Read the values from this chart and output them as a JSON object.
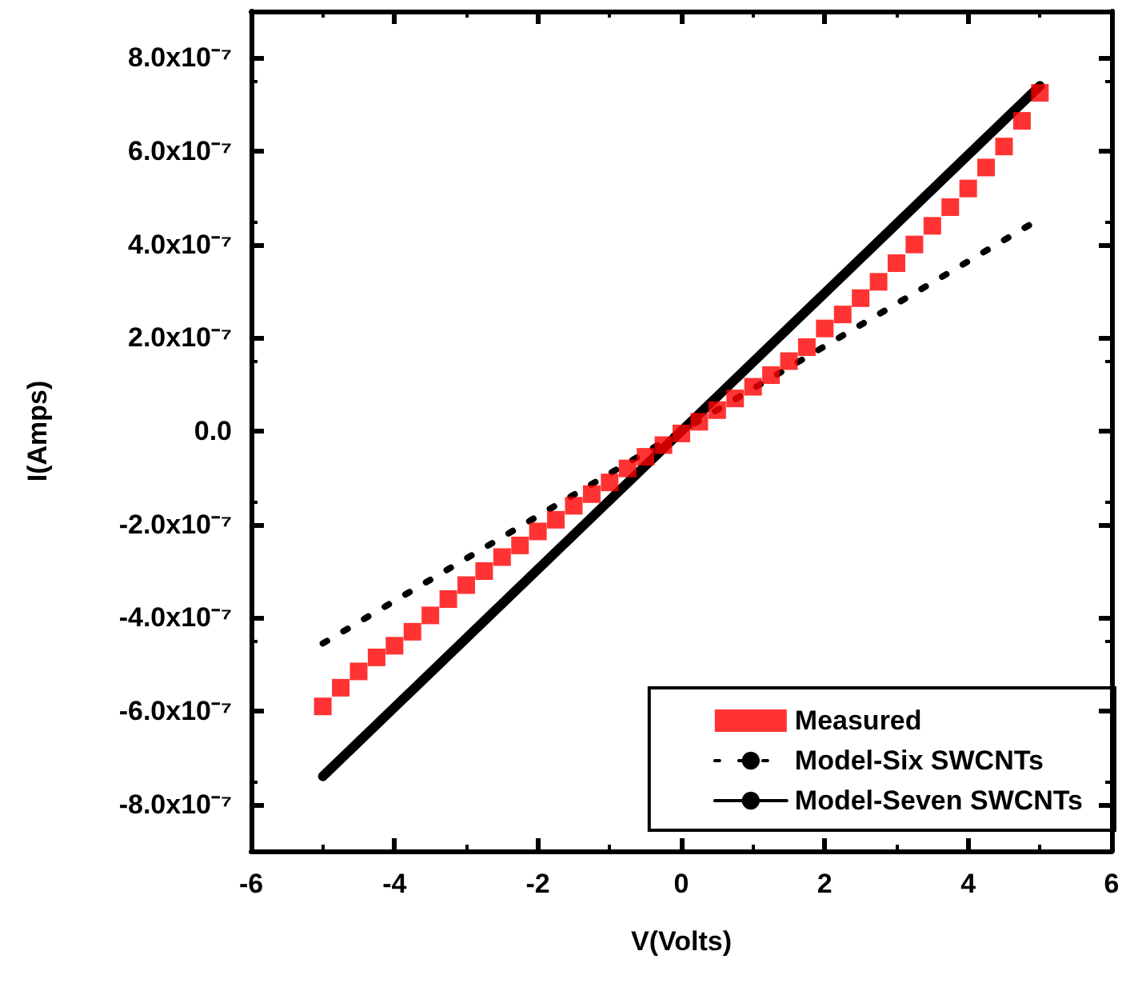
{
  "chart_data": {
    "type": "scatter",
    "xlabel": "V(Volts)",
    "ylabel": "I(Amps)",
    "xlim": [
      -6,
      6
    ],
    "xticks": [
      -6,
      -4,
      -2,
      0,
      2,
      4,
      6
    ],
    "ylim": [
      -9e-07,
      9e-07
    ],
    "yticks": [
      {
        "value": -8e-07,
        "label": "-8.0x10⁻⁷"
      },
      {
        "value": -6e-07,
        "label": "-6.0x10⁻⁷"
      },
      {
        "value": -4e-07,
        "label": "-4.0x10⁻⁷"
      },
      {
        "value": -2e-07,
        "label": "-2.0x10⁻⁷"
      },
      {
        "value": 0,
        "label": "0.0"
      },
      {
        "value": 2e-07,
        "label": "2.0x10⁻⁷"
      },
      {
        "value": 4e-07,
        "label": "4.0x10⁻⁷"
      },
      {
        "value": 6e-07,
        "label": "6.0x10⁻⁷"
      },
      {
        "value": 8e-07,
        "label": "8.0x10⁻⁷"
      }
    ],
    "grid": false,
    "legend": "bottom right",
    "series": [
      {
        "name": "Measured",
        "marker": "square",
        "color": "#ff0000",
        "x": [
          -5,
          -4.75,
          -4.5,
          -4.25,
          -4,
          -3.75,
          -3.5,
          -3.25,
          -3,
          -2.75,
          -2.5,
          -2.25,
          -2,
          -1.75,
          -1.5,
          -1.25,
          -1,
          -0.75,
          -0.5,
          -0.25,
          0,
          0.25,
          0.5,
          0.75,
          1,
          1.25,
          1.5,
          1.75,
          2,
          2.25,
          2.5,
          2.75,
          3,
          3.25,
          3.5,
          3.75,
          4,
          4.25,
          4.5,
          4.75,
          5
        ],
        "values": [
          -5.9e-07,
          -5.5e-07,
          -5.15e-07,
          -4.85e-07,
          -4.6e-07,
          -4.3e-07,
          -3.95e-07,
          -3.6e-07,
          -3.3e-07,
          -3e-07,
          -2.7e-07,
          -2.45e-07,
          -2.15e-07,
          -1.9e-07,
          -1.6e-07,
          -1.35e-07,
          -1.1e-07,
          -8e-08,
          -5.5e-08,
          -3e-08,
          -5e-09,
          2e-08,
          4.5e-08,
          7e-08,
          9.5e-08,
          1.2e-07,
          1.5e-07,
          1.8e-07,
          2.2e-07,
          2.5e-07,
          2.85e-07,
          3.2e-07,
          3.6e-07,
          4e-07,
          4.4e-07,
          4.8e-07,
          5.2e-07,
          5.65e-07,
          6.1e-07,
          6.65e-07,
          7.25e-07
        ]
      },
      {
        "name": "Model-Six SWCNTs",
        "type": "line",
        "marker": "none",
        "line_style": "dotted",
        "color": "#000000",
        "x": [
          -5,
          5
        ],
        "values": [
          -4.55e-07,
          4.55e-07
        ]
      },
      {
        "name": "Model-Seven SWCNTs",
        "type": "line",
        "marker": "none",
        "line_style": "solid",
        "color": "#000000",
        "x": [
          -5,
          5
        ],
        "values": [
          -7.4e-07,
          7.4e-07
        ]
      }
    ]
  }
}
